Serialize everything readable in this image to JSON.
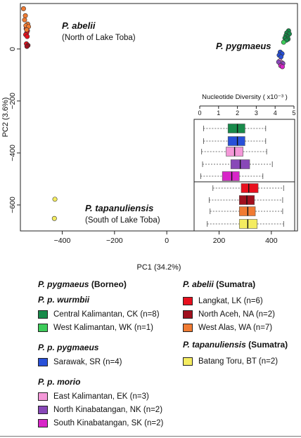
{
  "chart_data": [
    {
      "type": "scatter",
      "xlabel": "PC1 (34.2%)",
      "ylabel": "PC2 (3.6%)",
      "xlim": [
        -560,
        500
      ],
      "ylim": [
        -700,
        175
      ],
      "xticks": [
        -400,
        -200,
        0,
        200,
        400
      ],
      "yticks": [
        -600,
        -400,
        -200,
        0
      ],
      "xtick_labels": [
        "−400",
        "−200",
        "0",
        "200",
        "400"
      ],
      "ytick_labels": [
        "−600",
        "−400",
        "−200",
        "0"
      ],
      "annotations": [
        {
          "name": "P. abelii",
          "sub": "(North of Lake Toba)"
        },
        {
          "name": "P. pygmaeus",
          "sub": ""
        },
        {
          "name": "P. tapanuliensis",
          "sub": "(South of Lake Toba)"
        }
      ],
      "series": [
        {
          "code": "LK",
          "color": "#e8101e",
          "points": [
            [
              -538,
              78
            ],
            [
              -533,
              70
            ],
            [
              -536,
              62
            ],
            [
              -540,
              55
            ],
            [
              -534,
              48
            ],
            [
              -537,
              20
            ]
          ]
        },
        {
          "code": "NA",
          "color": "#a0101e",
          "points": [
            [
              -531,
              14
            ],
            [
              -535,
              10
            ]
          ]
        },
        {
          "code": "WA",
          "color": "#f07b33",
          "points": [
            [
              -548,
              155
            ],
            [
              -541,
              128
            ],
            [
              -544,
              112
            ],
            [
              -532,
              96
            ],
            [
              -539,
              90
            ],
            [
              -529,
              86
            ],
            [
              -536,
              74
            ]
          ]
        },
        {
          "code": "CK",
          "color": "#188a4a",
          "points": [
            [
              466,
              70
            ],
            [
              459,
              62
            ],
            [
              469,
              58
            ],
            [
              456,
              52
            ],
            [
              462,
              46
            ],
            [
              452,
              42
            ],
            [
              464,
              38
            ],
            [
              458,
              34
            ]
          ]
        },
        {
          "code": "WK",
          "color": "#3dcc5a",
          "points": [
            [
              447,
              26
            ]
          ]
        },
        {
          "code": "SR",
          "color": "#2850d8",
          "points": [
            [
              434,
              -12
            ],
            [
              441,
              -18
            ],
            [
              430,
              -24
            ],
            [
              437,
              -30
            ]
          ]
        },
        {
          "code": "EK",
          "color": "#f498d8",
          "points": [
            [
              432,
              -46
            ],
            [
              439,
              -52
            ],
            [
              435,
              -58
            ]
          ]
        },
        {
          "code": "NK",
          "color": "#8848b8",
          "points": [
            [
              428,
              -50
            ],
            [
              444,
              -56
            ]
          ]
        },
        {
          "code": "SK",
          "color": "#d825c8",
          "points": [
            [
              436,
              -64
            ],
            [
              442,
              -68
            ]
          ]
        },
        {
          "code": "BT",
          "color": "#f4ec60",
          "points": [
            [
              -428,
              -578
            ],
            [
              -430,
              -652
            ]
          ]
        }
      ]
    },
    {
      "type": "box",
      "title": "Nucleotide Diversity ( x10⁻³ )",
      "xlim": [
        0,
        5
      ],
      "xticks": [
        0,
        1,
        2,
        3,
        4,
        5
      ],
      "xtick_labels": [
        "0",
        "1",
        "2",
        "3",
        "4",
        "5"
      ],
      "boxes": [
        {
          "code": "CK",
          "color": "#188a4a",
          "whisker_low": 0.2,
          "q1": 1.5,
          "median": 2.0,
          "q3": 2.4,
          "whisker_high": 3.5
        },
        {
          "code": "WK",
          "color": "#2850d8",
          "whisker_low": 0.2,
          "q1": 1.5,
          "median": 2.0,
          "q3": 2.4,
          "whisker_high": 3.5
        },
        {
          "code": "SR",
          "color": "#f498d8",
          "whisker_low": 0.1,
          "q1": 1.4,
          "median": 1.85,
          "q3": 2.3,
          "whisker_high": 3.55
        },
        {
          "code": "EK",
          "color": "#8848b8",
          "whisker_low": 0.15,
          "q1": 1.65,
          "median": 2.15,
          "q3": 2.65,
          "whisker_high": 3.85
        },
        {
          "code": "NK",
          "color": "#d825c8",
          "whisker_low": 0.05,
          "q1": 1.2,
          "median": 1.7,
          "q3": 2.1,
          "whisker_high": 3.35
        },
        {
          "code": "LK",
          "color": "#e8101e",
          "whisker_low": 0.7,
          "q1": 2.2,
          "median": 2.6,
          "q3": 3.1,
          "whisker_high": 4.45
        },
        {
          "code": "NA",
          "color": "#a0101e",
          "whisker_low": 0.5,
          "q1": 2.1,
          "median": 2.5,
          "q3": 2.9,
          "whisker_high": 4.4
        },
        {
          "code": "WA",
          "color": "#f07b33",
          "whisker_low": 0.55,
          "q1": 2.1,
          "median": 2.55,
          "q3": 2.95,
          "whisker_high": 4.4
        },
        {
          "code": "BT",
          "color": "#f4ec60",
          "whisker_low": 0.4,
          "q1": 2.1,
          "median": 2.55,
          "q3": 3.05,
          "whisker_high": 4.45
        }
      ]
    }
  ],
  "legend": {
    "left": {
      "heading_species": "P. pygmaeus",
      "heading_region": "(Borneo)",
      "groups": [
        {
          "title": "P. p. wurmbii",
          "items": [
            {
              "label": "Central Kalimantan, CK (n=8)",
              "color": "#188a4a"
            },
            {
              "label": "West Kalimantan, WK (n=1)",
              "color": "#3dcc5a"
            }
          ]
        },
        {
          "title": "P. p. pygmaeus",
          "items": [
            {
              "label": "Sarawak, SR (n=4)",
              "color": "#2850d8"
            }
          ]
        },
        {
          "title": "P. p. morio",
          "items": [
            {
              "label": "East Kalimantan, EK (n=3)",
              "color": "#f498d8"
            },
            {
              "label": "North Kinabatangan, NK (n=2)",
              "color": "#8848b8"
            },
            {
              "label": "South Kinabatangan, SK (n=2)",
              "color": "#d825c8"
            }
          ]
        }
      ]
    },
    "right": {
      "abelii_species": "P. abelii",
      "abelii_region": "(Sumatra)",
      "abelii_items": [
        {
          "label": "Langkat, LK (n=6)",
          "color": "#e8101e"
        },
        {
          "label": "North Aceh, NA (n=2)",
          "color": "#a0101e"
        },
        {
          "label": "West Alas, WA (n=7)",
          "color": "#f07b33"
        }
      ],
      "tap_species": "P. tapanuliensis",
      "tap_region": "(Sumatra)",
      "tap_items": [
        {
          "label": "Batang Toru, BT (n=2)",
          "color": "#f4ec60"
        }
      ]
    }
  }
}
